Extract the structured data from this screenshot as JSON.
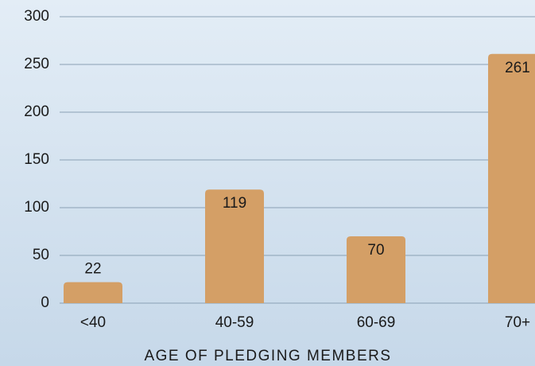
{
  "chart_data": {
    "type": "bar",
    "x_label": "AGE OF PLEDGING MEMBERS",
    "categories": [
      "<40",
      "40-59",
      "60-69",
      "70+"
    ],
    "values": [
      22,
      119,
      70,
      261
    ],
    "color": "#d49f66",
    "ylim": [
      0,
      300
    ],
    "yticks": [
      0,
      50,
      100,
      150,
      200,
      250,
      300
    ],
    "grid": true
  }
}
